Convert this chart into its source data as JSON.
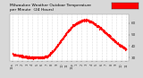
{
  "title": "Milwaukee Weather Outdoor Temperature\nper Minute  (24 Hours)",
  "title_fontsize": 3.2,
  "title_color": "#000000",
  "bg_color": "#d8d8d8",
  "plot_bg_color": "#ffffff",
  "line_color": "#ff0000",
  "markersize": 0.8,
  "ylim": [
    27,
    68
  ],
  "yticks": [
    30,
    40,
    50,
    60
  ],
  "ylabel_fontsize": 3.0,
  "xlabel_fontsize": 2.5,
  "legend_color": "#ff0000",
  "x_hours": [
    0,
    1,
    2,
    3,
    4,
    5,
    6,
    7,
    8,
    9,
    10,
    11,
    12,
    13,
    14,
    15,
    16,
    17,
    18,
    19,
    20,
    21,
    22,
    23
  ],
  "temps": [
    33,
    32,
    31,
    30,
    30,
    30,
    30,
    31,
    35,
    40,
    46,
    52,
    57,
    60,
    62,
    63,
    61,
    58,
    55,
    51,
    47,
    43,
    40,
    37
  ],
  "xtick_labels": [
    "12a",
    "1",
    "2",
    "3",
    "4",
    "5",
    "6",
    "7",
    "8",
    "9",
    "10",
    "11",
    "12p",
    "1",
    "2",
    "3",
    "4",
    "5",
    "6",
    "7",
    "8",
    "9",
    "10",
    "11"
  ],
  "grid_color": "#aaaaaa",
  "tick_color": "#333333",
  "noise_std": 0.5,
  "n_per_hour": 60
}
